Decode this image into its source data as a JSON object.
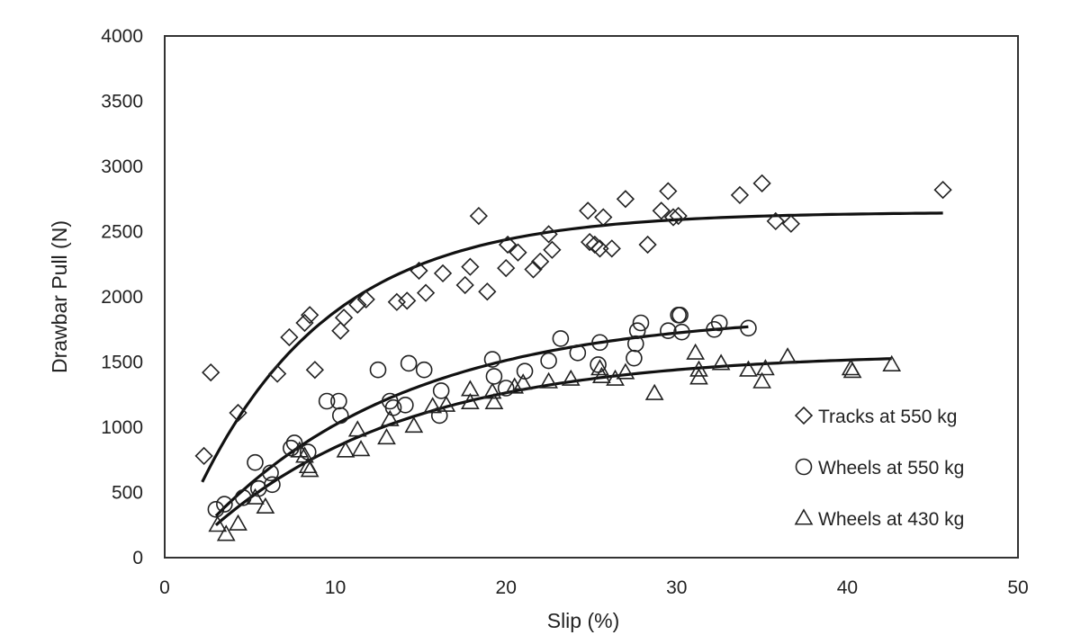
{
  "chart_data": {
    "type": "scatter",
    "xlabel": "Slip (%)",
    "ylabel": "Drawbar Pull (N)",
    "xlim": [
      0,
      50
    ],
    "ylim": [
      0,
      4000
    ],
    "xticks": [
      "0",
      "10",
      "20",
      "30",
      "40",
      "50"
    ],
    "yticks": [
      "0",
      "500",
      "1000",
      "1500",
      "2000",
      "2500",
      "3000",
      "3500",
      "4000"
    ],
    "grid": false,
    "legend_position": "bottom-right",
    "series": [
      {
        "name": "Tracks at 550 kg",
        "marker": "diamond",
        "points": [
          [
            2.3,
            780
          ],
          [
            2.7,
            1420
          ],
          [
            4.3,
            1110
          ],
          [
            6.6,
            1410
          ],
          [
            7.3,
            1690
          ],
          [
            8.2,
            1800
          ],
          [
            8.5,
            1860
          ],
          [
            8.8,
            1440
          ],
          [
            10.3,
            1740
          ],
          [
            10.5,
            1840
          ],
          [
            11.3,
            1940
          ],
          [
            11.8,
            1980
          ],
          [
            13.6,
            1960
          ],
          [
            14.2,
            1970
          ],
          [
            14.9,
            2200
          ],
          [
            15.3,
            2030
          ],
          [
            16.3,
            2180
          ],
          [
            17.6,
            2090
          ],
          [
            17.9,
            2230
          ],
          [
            18.4,
            2620
          ],
          [
            18.9,
            2040
          ],
          [
            20.0,
            2220
          ],
          [
            20.1,
            2400
          ],
          [
            20.7,
            2340
          ],
          [
            21.6,
            2210
          ],
          [
            22.0,
            2270
          ],
          [
            22.5,
            2480
          ],
          [
            22.7,
            2360
          ],
          [
            24.8,
            2660
          ],
          [
            24.9,
            2420
          ],
          [
            25.2,
            2400
          ],
          [
            25.5,
            2370
          ],
          [
            25.7,
            2610
          ],
          [
            26.2,
            2370
          ],
          [
            27.0,
            2750
          ],
          [
            28.3,
            2400
          ],
          [
            29.1,
            2660
          ],
          [
            29.5,
            2810
          ],
          [
            29.8,
            2610
          ],
          [
            30.1,
            2620
          ],
          [
            33.7,
            2780
          ],
          [
            35.0,
            2870
          ],
          [
            35.8,
            2580
          ],
          [
            36.7,
            2560
          ],
          [
            45.6,
            2820
          ]
        ]
      },
      {
        "name": "Wheels at 550 kg",
        "marker": "circle",
        "points": [
          [
            3.0,
            370
          ],
          [
            3.5,
            410
          ],
          [
            4.6,
            460
          ],
          [
            5.3,
            730
          ],
          [
            5.5,
            530
          ],
          [
            6.2,
            650
          ],
          [
            6.3,
            560
          ],
          [
            7.4,
            840
          ],
          [
            7.6,
            880
          ],
          [
            8.4,
            810
          ],
          [
            9.5,
            1200
          ],
          [
            10.2,
            1200
          ],
          [
            10.3,
            1090
          ],
          [
            12.5,
            1440
          ],
          [
            13.2,
            1200
          ],
          [
            13.4,
            1150
          ],
          [
            14.1,
            1170
          ],
          [
            14.3,
            1490
          ],
          [
            15.2,
            1440
          ],
          [
            16.1,
            1090
          ],
          [
            16.2,
            1280
          ],
          [
            19.2,
            1520
          ],
          [
            19.3,
            1390
          ],
          [
            20.0,
            1300
          ],
          [
            21.1,
            1430
          ],
          [
            22.5,
            1510
          ],
          [
            23.2,
            1680
          ],
          [
            24.2,
            1570
          ],
          [
            25.4,
            1480
          ],
          [
            25.5,
            1650
          ],
          [
            27.5,
            1530
          ],
          [
            27.6,
            1640
          ],
          [
            27.7,
            1740
          ],
          [
            27.9,
            1800
          ],
          [
            29.5,
            1740
          ],
          [
            30.1,
            1860
          ],
          [
            30.2,
            1860
          ],
          [
            30.3,
            1730
          ],
          [
            32.2,
            1750
          ],
          [
            32.5,
            1800
          ],
          [
            34.2,
            1760
          ]
        ]
      },
      {
        "name": "Wheels at 430 kg",
        "marker": "triangle",
        "points": [
          [
            3.1,
            250
          ],
          [
            3.6,
            180
          ],
          [
            4.3,
            260
          ],
          [
            5.3,
            460
          ],
          [
            5.9,
            390
          ],
          [
            7.9,
            820
          ],
          [
            8.2,
            780
          ],
          [
            8.4,
            700
          ],
          [
            8.5,
            670
          ],
          [
            10.6,
            820
          ],
          [
            11.3,
            980
          ],
          [
            11.5,
            830
          ],
          [
            13.0,
            920
          ],
          [
            13.2,
            1060
          ],
          [
            14.6,
            1010
          ],
          [
            15.7,
            1160
          ],
          [
            16.5,
            1170
          ],
          [
            17.9,
            1190
          ],
          [
            17.9,
            1290
          ],
          [
            19.2,
            1270
          ],
          [
            19.3,
            1190
          ],
          [
            20.5,
            1310
          ],
          [
            21.0,
            1340
          ],
          [
            22.5,
            1350
          ],
          [
            23.8,
            1370
          ],
          [
            25.5,
            1450
          ],
          [
            25.6,
            1390
          ],
          [
            26.4,
            1370
          ],
          [
            27.0,
            1420
          ],
          [
            28.7,
            1260
          ],
          [
            31.1,
            1570
          ],
          [
            31.3,
            1440
          ],
          [
            31.3,
            1380
          ],
          [
            32.6,
            1490
          ],
          [
            34.2,
            1440
          ],
          [
            35.0,
            1350
          ],
          [
            35.2,
            1450
          ],
          [
            36.5,
            1540
          ],
          [
            40.2,
            1450
          ],
          [
            40.3,
            1430
          ],
          [
            42.6,
            1480
          ]
        ]
      }
    ],
    "trendlines": [
      {
        "series": "Tracks at 550 kg",
        "x_range": [
          2.2,
          45.6
        ],
        "asymptote": 2650,
        "start": 580,
        "rate": 0.128
      },
      {
        "series": "Wheels at 550 kg",
        "x_range": [
          3.0,
          34.2
        ],
        "asymptote": 1880,
        "start": 320,
        "rate": 0.085
      },
      {
        "series": "Wheels at 430 kg",
        "x_range": [
          3.0,
          42.6
        ],
        "asymptote": 1570,
        "start": 250,
        "rate": 0.086
      }
    ]
  }
}
